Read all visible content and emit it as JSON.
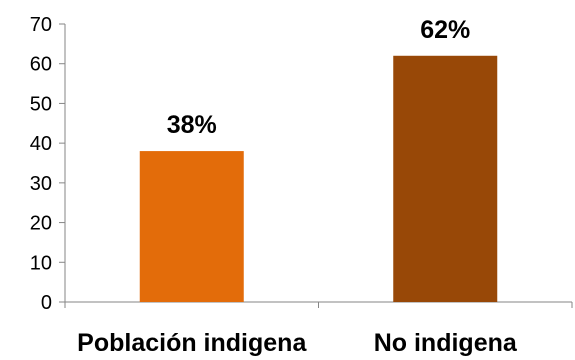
{
  "chart_data": {
    "type": "bar",
    "categories": [
      "Población indigena",
      "No indigena"
    ],
    "values": [
      38,
      62
    ],
    "data_labels": [
      "38%",
      "62%"
    ],
    "colors": [
      "#e36c0a",
      "#984807"
    ],
    "ylim": [
      0,
      70
    ],
    "yticks": [
      "0",
      "10",
      "20",
      "30",
      "40",
      "50",
      "60",
      "70"
    ],
    "title": "",
    "xlabel": "",
    "ylabel": "",
    "grid": false,
    "legend": false
  }
}
